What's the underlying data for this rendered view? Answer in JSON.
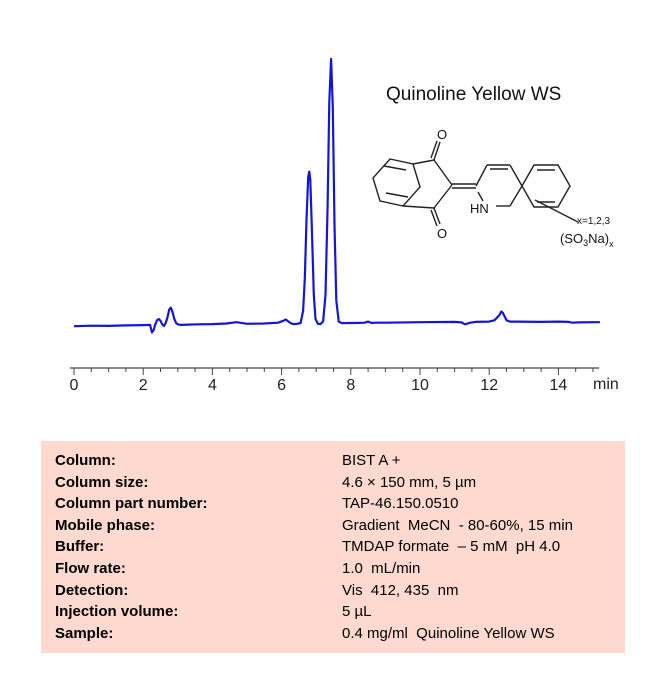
{
  "chart_data": {
    "type": "line",
    "title": "Quinoline Yellow WS",
    "xlabel": "min",
    "ylabel": "",
    "xlim": [
      -0.3,
      15.2
    ],
    "ylim": [
      0,
      100
    ],
    "xticks": [
      "0",
      "2",
      "4",
      "6",
      "8",
      "10",
      "12",
      "14"
    ],
    "tick_values": [
      0,
      2,
      4,
      6,
      8,
      10,
      12,
      14
    ],
    "grid": false,
    "series": [
      {
        "color": "#1515d8",
        "x": [
          0.0,
          0.5,
          1.0,
          1.5,
          2.0,
          2.2,
          2.25,
          2.3,
          2.35,
          2.4,
          2.45,
          2.5,
          2.55,
          2.6,
          2.65,
          2.7,
          2.75,
          2.8,
          2.85,
          2.9,
          2.95,
          3.0,
          3.1,
          3.3,
          3.6,
          4.0,
          4.4,
          4.7,
          5.0,
          5.5,
          5.9,
          6.05,
          6.12,
          6.2,
          6.28,
          6.35,
          6.45,
          6.55,
          6.62,
          6.67,
          6.72,
          6.77,
          6.8,
          6.83,
          6.88,
          6.93,
          6.98,
          7.05,
          7.12,
          7.2,
          7.27,
          7.33,
          7.38,
          7.43,
          7.48,
          7.53,
          7.58,
          7.65,
          7.75,
          7.9,
          8.1,
          8.4,
          8.5,
          8.6,
          8.7,
          9.0,
          10.0,
          11.0,
          11.2,
          11.3,
          11.45,
          11.6,
          12.0,
          12.15,
          12.3,
          12.35,
          12.4,
          12.45,
          12.5,
          12.6,
          12.8,
          13.5,
          14.0,
          14.3,
          14.4,
          14.6,
          15.0,
          15.2
        ],
        "y": [
          0.3,
          0.5,
          0.4,
          0.6,
          0.7,
          0.8,
          -2.0,
          -1.2,
          1.0,
          2.5,
          3.0,
          2.3,
          1.0,
          0.4,
          1.5,
          3.5,
          6.5,
          7.2,
          5.5,
          3.0,
          1.5,
          1.0,
          0.8,
          0.9,
          1.0,
          1.1,
          1.3,
          1.8,
          1.2,
          1.3,
          1.6,
          2.3,
          2.8,
          2.0,
          1.3,
          1.1,
          1.2,
          1.5,
          6.0,
          18.0,
          40.0,
          56.0,
          58.0,
          55.0,
          35.0,
          12.0,
          3.0,
          1.2,
          1.1,
          2.0,
          12.0,
          45.0,
          84.0,
          100.0,
          82.0,
          38.0,
          10.0,
          2.0,
          1.4,
          1.5,
          1.5,
          1.6,
          2.0,
          1.5,
          1.6,
          1.6,
          1.8,
          1.9,
          1.7,
          1.0,
          1.6,
          1.9,
          2.0,
          2.5,
          4.5,
          5.8,
          5.2,
          3.8,
          2.5,
          2.0,
          2.0,
          1.9,
          2.0,
          1.9,
          1.6,
          1.7,
          1.8,
          1.8
        ]
      }
    ],
    "annotation": {
      "x_label": "x=1,2,3",
      "nh_label": "HN",
      "o_label": "O",
      "substituent": "(SO",
      "sub3": "3",
      "na": "Na)",
      "subx": "x"
    }
  },
  "info": [
    {
      "label": "Column:",
      "value": "BIST A +"
    },
    {
      "label": "Column size:",
      "value": "4.6 × 150 mm, 5 µm"
    },
    {
      "label": "Column part number:",
      "value": "TAP-46.150.0510"
    },
    {
      "label": "Mobile phase:",
      "value": "Gradient  MeCN  - 80-60%, 15 min"
    },
    {
      "label": "Buffer:",
      "value": "TMDAP formate  – 5 mM  pH 4.0"
    },
    {
      "label": "Flow rate:",
      "value": "1.0  mL/min"
    },
    {
      "label": "Detection:",
      "value": "Vis  412, 435  nm"
    },
    {
      "label": "Injection volume:",
      "value": "5 µL"
    },
    {
      "label": "Sample:",
      "value": "0.4 mg/ml  Quinoline Yellow WS"
    }
  ]
}
